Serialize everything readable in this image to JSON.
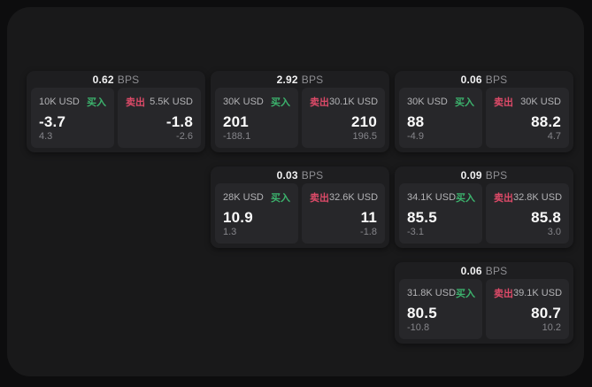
{
  "labels": {
    "bps": "BPS",
    "buy": "买入",
    "sell": "卖出"
  },
  "colors": {
    "buy": "#3cb36d",
    "sell": "#dd4a68",
    "background": "#0d0d0e",
    "panel": "#19191a",
    "card": "#1e1e20",
    "tile": "#27272a"
  },
  "cards": [
    {
      "col": 1,
      "row": 1,
      "bps": "0.62",
      "buy_size": "10K USD",
      "buy_price": "-3.7",
      "buy_delta": "4.3",
      "sell_size": "5.5K USD",
      "sell_price": "-1.8",
      "sell_delta": "-2.6"
    },
    {
      "col": 2,
      "row": 1,
      "bps": "2.92",
      "buy_size": "30K USD",
      "buy_price": "201",
      "buy_delta": "-188.1",
      "sell_size": "30.1K USD",
      "sell_price": "210",
      "sell_delta": "196.5"
    },
    {
      "col": 3,
      "row": 1,
      "bps": "0.06",
      "buy_size": "30K USD",
      "buy_price": "88",
      "buy_delta": "-4.9",
      "sell_size": "30K USD",
      "sell_price": "88.2",
      "sell_delta": "4.7"
    },
    {
      "col": 2,
      "row": 2,
      "bps": "0.03",
      "buy_size": "28K USD",
      "buy_price": "10.9",
      "buy_delta": "1.3",
      "sell_size": "32.6K USD",
      "sell_price": "11",
      "sell_delta": "-1.8"
    },
    {
      "col": 3,
      "row": 2,
      "bps": "0.09",
      "buy_size": "34.1K USD",
      "buy_price": "85.5",
      "buy_delta": "-3.1",
      "sell_size": "32.8K USD",
      "sell_price": "85.8",
      "sell_delta": "3.0"
    },
    {
      "col": 3,
      "row": 3,
      "bps": "0.06",
      "buy_size": "31.8K USD",
      "buy_price": "80.5",
      "buy_delta": "-10.8",
      "sell_size": "39.1K USD",
      "sell_price": "80.7",
      "sell_delta": "10.2"
    }
  ]
}
